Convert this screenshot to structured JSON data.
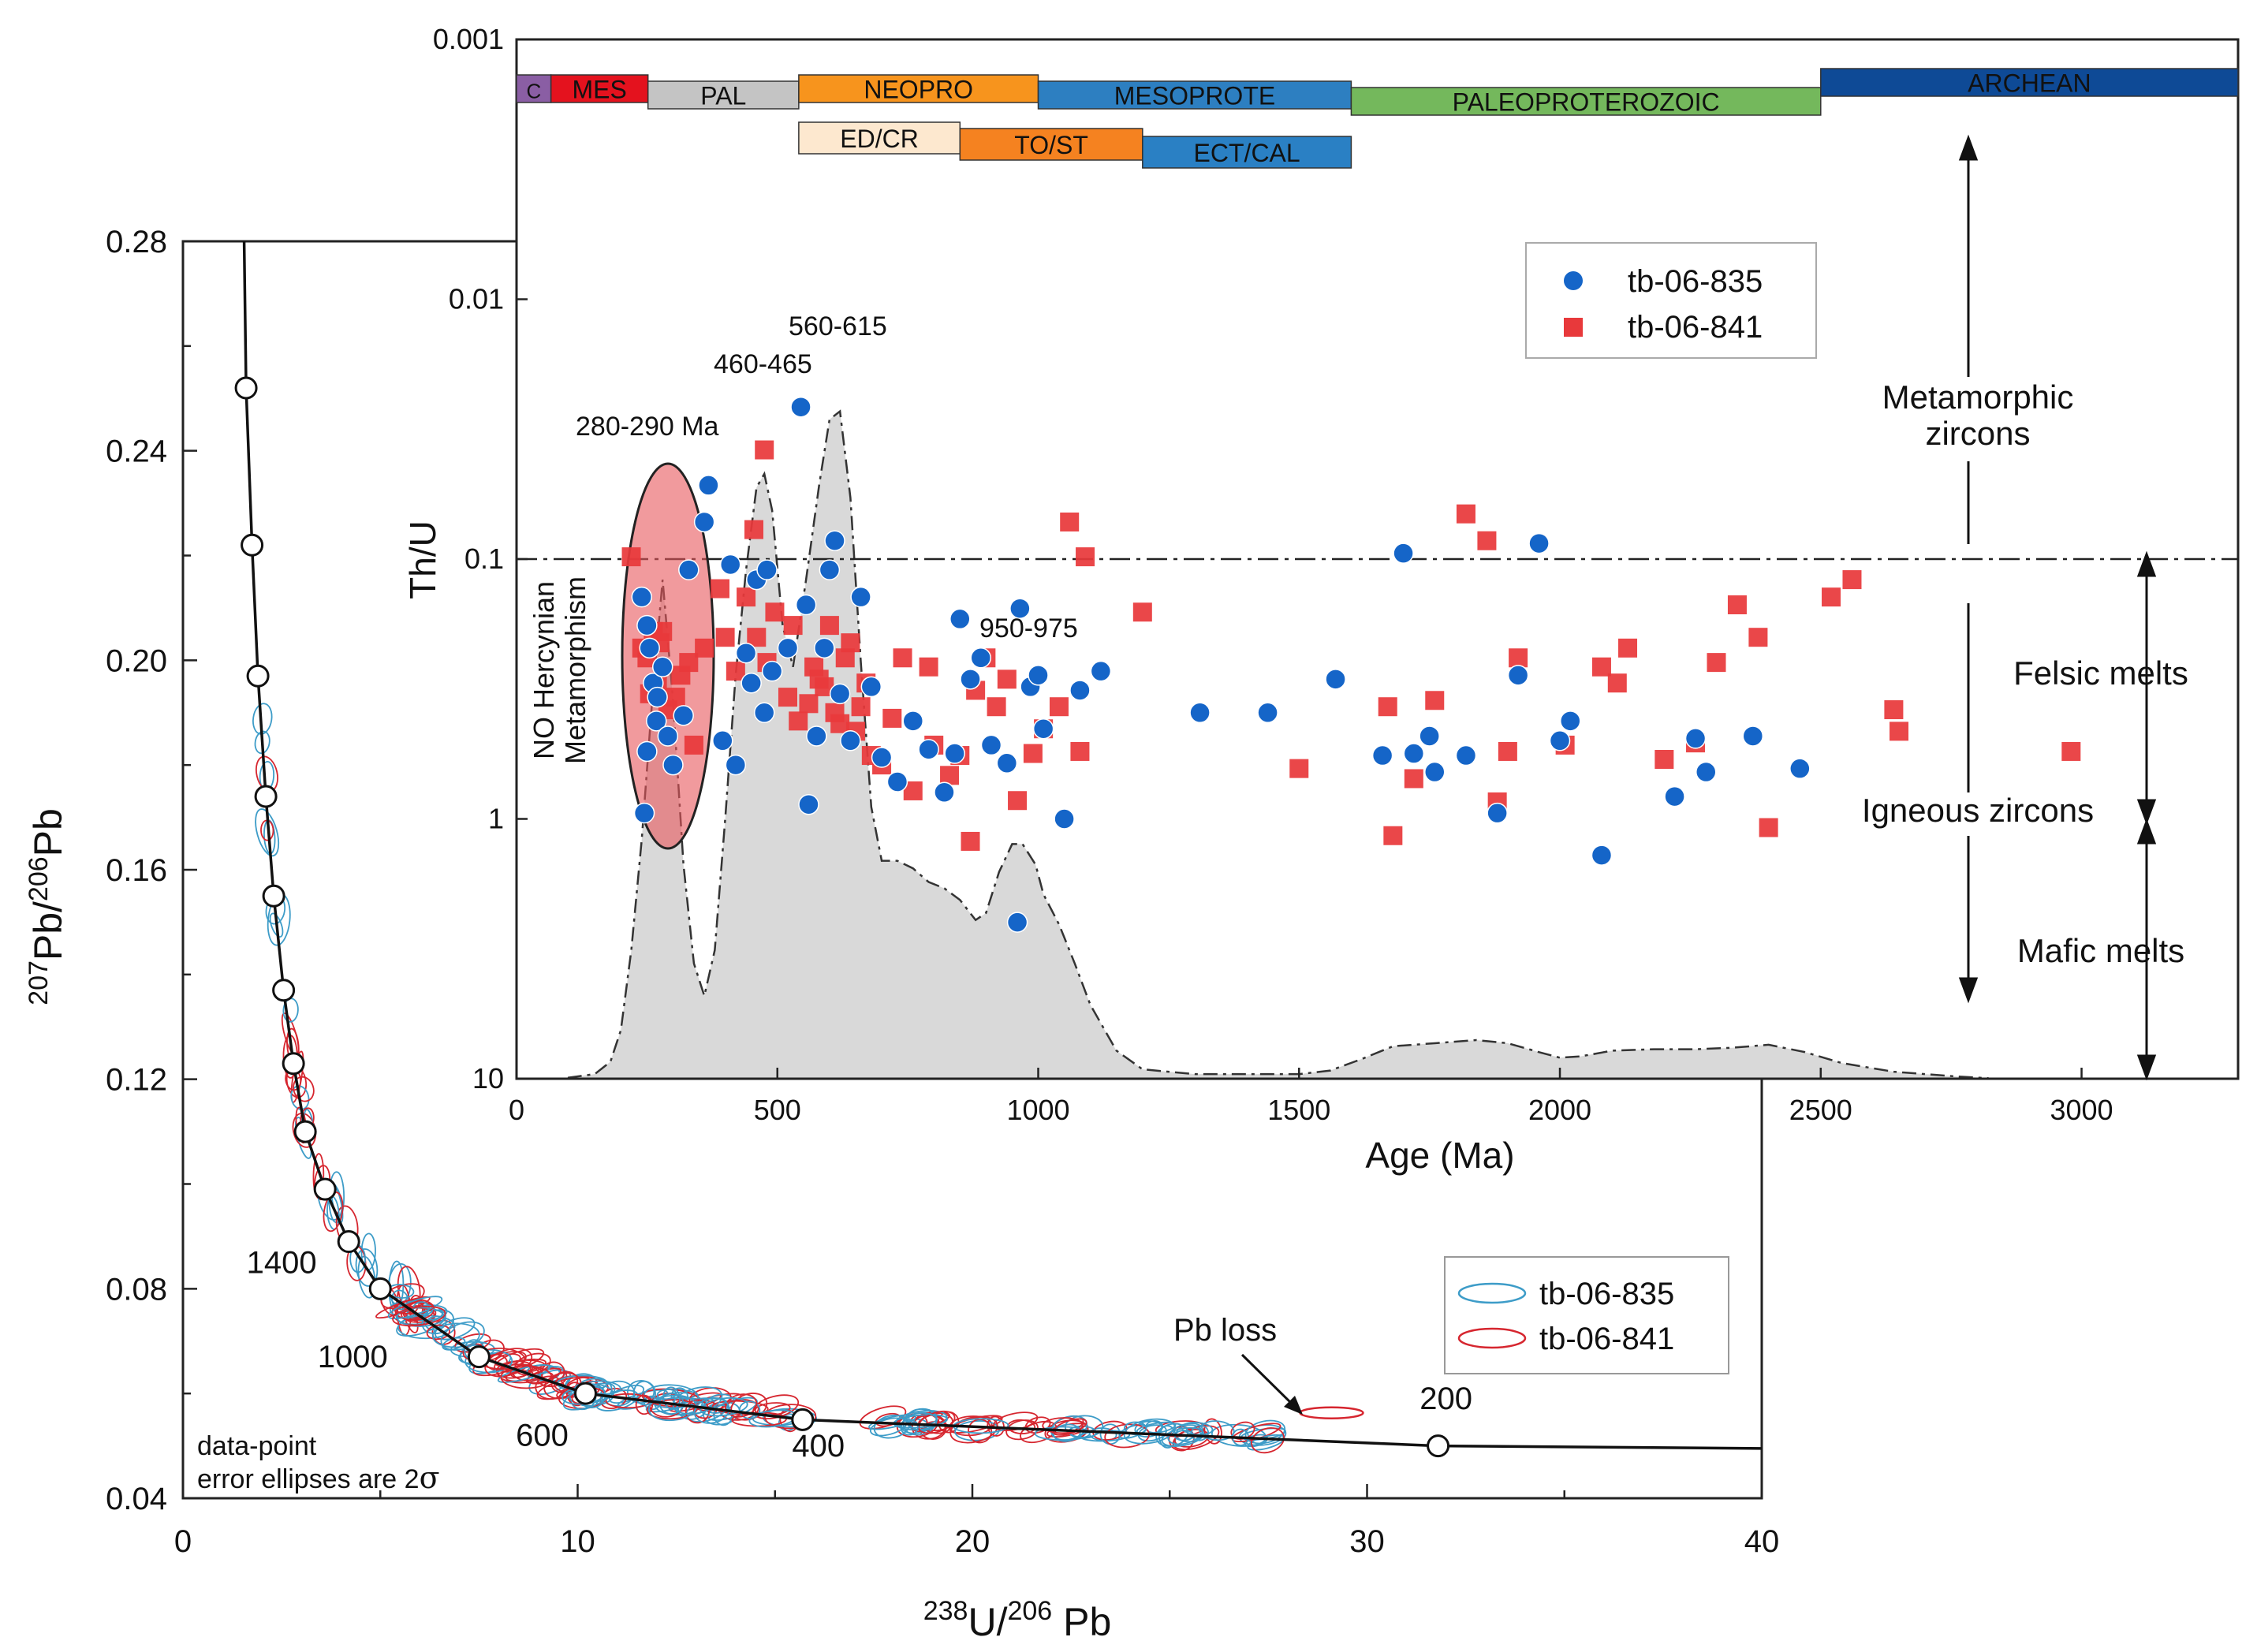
{
  "chart_data": [
    {
      "id": "concordia",
      "type": "scatter",
      "subtype": "concordia-diagram",
      "xlabel": "238U/206Pb",
      "xlabel_parts": {
        "x_mass1": "238",
        "x_el1": "U/",
        "x_mass2": "206",
        "x_el2": " Pb"
      },
      "ylabel": "207Pb/206Pb",
      "ylabel_parts": {
        "y_mass1": "207",
        "y_el1": "Pb/",
        "y_mass2": "206",
        "y_el2": "Pb"
      },
      "xlim": [
        0,
        40
      ],
      "ylim": [
        0.04,
        0.28
      ],
      "x_ticks": [
        0,
        10,
        20,
        30,
        40
      ],
      "y_ticks": [
        0.04,
        0.08,
        0.12,
        0.16,
        0.2,
        0.24,
        0.28
      ],
      "y_tick_labels": [
        "0.04",
        "0.08",
        "0.12",
        "0.16",
        "0.20",
        "0.24",
        "0.28"
      ],
      "concordia_nodes": [
        {
          "x": 1.6,
          "y": 0.252
        },
        {
          "x": 1.75,
          "y": 0.222
        },
        {
          "x": 1.9,
          "y": 0.197
        },
        {
          "x": 2.1,
          "y": 0.174
        },
        {
          "x": 2.3,
          "y": 0.155
        },
        {
          "x": 2.55,
          "y": 0.137
        },
        {
          "x": 2.8,
          "y": 0.123
        },
        {
          "x": 3.1,
          "y": 0.11
        },
        {
          "x": 3.6,
          "y": 0.099
        },
        {
          "x": 4.2,
          "y": 0.089
        },
        {
          "x": 5.0,
          "y": 0.08
        },
        {
          "x": 7.5,
          "y": 0.067
        },
        {
          "x": 10.2,
          "y": 0.06
        },
        {
          "x": 15.7,
          "y": 0.055
        },
        {
          "x": 31.8,
          "y": 0.05
        }
      ],
      "concordia_age_labels": [
        {
          "text": "1400",
          "x": 2.5,
          "y": 0.083
        },
        {
          "text": "1000",
          "x": 4.3,
          "y": 0.065
        },
        {
          "text": "600",
          "x": 9.1,
          "y": 0.05
        },
        {
          "text": "400",
          "x": 16.1,
          "y": 0.048
        },
        {
          "text": "200",
          "x": 32.0,
          "y": 0.057
        }
      ],
      "series": [
        {
          "name": "tb-06-835",
          "color": "#3d9cc8",
          "style": "open ellipse"
        },
        {
          "name": "tb-06-841",
          "color": "#d6262f",
          "style": "open ellipse"
        }
      ],
      "annotations": {
        "pb_loss": "Pb loss",
        "error_note_line1": "data-point",
        "error_note_line2": "error ellipses are 2",
        "sigma": "σ"
      },
      "legend_position": "bottom-right"
    },
    {
      "id": "thu-age",
      "type": "scatter",
      "xlabel": "Age (Ma)",
      "ylabel": "Th/U",
      "xlim": [
        0,
        3300
      ],
      "ylim": [
        0.001,
        10
      ],
      "yscale": "log-inverted",
      "x_ticks": [
        0,
        500,
        1000,
        1500,
        2000,
        2500,
        3000
      ],
      "y_ticks": [
        0.001,
        0.01,
        0.1,
        1,
        10
      ],
      "y_tick_labels": [
        "0.001",
        "0.01",
        "0.1",
        "1",
        "10"
      ],
      "threshold_thu": 0.1,
      "series": [
        {
          "name": "tb-06-835",
          "marker": "circle",
          "color": "#1565c8",
          "points": [
            [
              240,
              0.14
            ],
            [
              250,
              0.18
            ],
            [
              255,
              0.22
            ],
            [
              262,
              0.3
            ],
            [
              268,
              0.42
            ],
            [
              250,
              0.55
            ],
            [
              245,
              0.95
            ],
            [
              270,
              0.34
            ],
            [
              280,
              0.26
            ],
            [
              290,
              0.48
            ],
            [
              300,
              0.62
            ],
            [
              320,
              0.4
            ],
            [
              330,
              0.11
            ],
            [
              360,
              0.072
            ],
            [
              368,
              0.052
            ],
            [
              395,
              0.5
            ],
            [
              410,
              0.105
            ],
            [
              420,
              0.62
            ],
            [
              440,
              0.23
            ],
            [
              450,
              0.3
            ],
            [
              460,
              0.12
            ],
            [
              475,
              0.39
            ],
            [
              480,
              0.11
            ],
            [
              490,
              0.27
            ],
            [
              520,
              0.22
            ],
            [
              545,
              0.026
            ],
            [
              555,
              0.15
            ],
            [
              560,
              0.88
            ],
            [
              575,
              0.48
            ],
            [
              590,
              0.22
            ],
            [
              600,
              0.11
            ],
            [
              610,
              0.085
            ],
            [
              620,
              0.33
            ],
            [
              640,
              0.5
            ],
            [
              660,
              0.14
            ],
            [
              680,
              0.31
            ],
            [
              700,
              0.58
            ],
            [
              730,
              0.72
            ],
            [
              760,
              0.42
            ],
            [
              790,
              0.54
            ],
            [
              820,
              0.79
            ],
            [
              840,
              0.56
            ],
            [
              850,
              0.17
            ],
            [
              870,
              0.29
            ],
            [
              890,
              0.24
            ],
            [
              910,
              0.52
            ],
            [
              940,
              0.61
            ],
            [
              960,
              2.5
            ],
            [
              965,
              0.155
            ],
            [
              985,
              0.31
            ],
            [
              1000,
              0.28
            ],
            [
              1010,
              0.45
            ],
            [
              1050,
              1.0
            ],
            [
              1080,
              0.32
            ],
            [
              1120,
              0.27
            ],
            [
              1310,
              0.39
            ],
            [
              1440,
              0.39
            ],
            [
              1570,
              0.29
            ],
            [
              1660,
              0.57
            ],
            [
              1700,
              0.095
            ],
            [
              1720,
              0.56
            ],
            [
              1750,
              0.48
            ],
            [
              1760,
              0.66
            ],
            [
              1820,
              0.57
            ],
            [
              1880,
              0.95
            ],
            [
              1920,
              0.28
            ],
            [
              1960,
              0.087
            ],
            [
              2000,
              0.5
            ],
            [
              2020,
              0.42
            ],
            [
              2080,
              1.38
            ],
            [
              2220,
              0.82
            ],
            [
              2260,
              0.49
            ],
            [
              2280,
              0.66
            ],
            [
              2370,
              0.48
            ],
            [
              2460,
              0.64
            ]
          ]
        },
        {
          "name": "tb-06-841",
          "marker": "square",
          "color": "#e8393b",
          "points": [
            [
              220,
              0.098
            ],
            [
              240,
              0.22
            ],
            [
              250,
              0.24
            ],
            [
              255,
              0.33
            ],
            [
              262,
              0.19
            ],
            [
              270,
              0.3
            ],
            [
              275,
              0.21
            ],
            [
              280,
              0.19
            ],
            [
              290,
              0.38
            ],
            [
              305,
              0.34
            ],
            [
              315,
              0.28
            ],
            [
              330,
              0.25
            ],
            [
              340,
              0.52
            ],
            [
              360,
              0.22
            ],
            [
              390,
              0.13
            ],
            [
              400,
              0.2
            ],
            [
              420,
              0.27
            ],
            [
              440,
              0.14
            ],
            [
              455,
              0.077
            ],
            [
              460,
              0.2
            ],
            [
              475,
              0.038
            ],
            [
              480,
              0.25
            ],
            [
              495,
              0.16
            ],
            [
              520,
              0.34
            ],
            [
              530,
              0.18
            ],
            [
              540,
              0.42
            ],
            [
              560,
              0.36
            ],
            [
              570,
              0.26
            ],
            [
              580,
              0.29
            ],
            [
              590,
              0.31
            ],
            [
              600,
              0.18
            ],
            [
              610,
              0.39
            ],
            [
              620,
              0.43
            ],
            [
              630,
              0.24
            ],
            [
              640,
              0.21
            ],
            [
              650,
              0.46
            ],
            [
              660,
              0.37
            ],
            [
              670,
              0.3
            ],
            [
              680,
              0.57
            ],
            [
              700,
              0.62
            ],
            [
              720,
              0.41
            ],
            [
              740,
              0.24
            ],
            [
              760,
              0.78
            ],
            [
              790,
              0.26
            ],
            [
              800,
              0.52
            ],
            [
              830,
              0.68
            ],
            [
              850,
              0.57
            ],
            [
              870,
              1.22
            ],
            [
              880,
              0.32
            ],
            [
              900,
              0.24
            ],
            [
              920,
              0.37
            ],
            [
              940,
              0.29
            ],
            [
              960,
              0.85
            ],
            [
              990,
              0.56
            ],
            [
              1010,
              0.45
            ],
            [
              1040,
              0.37
            ],
            [
              1060,
              0.072
            ],
            [
              1080,
              0.55
            ],
            [
              1090,
              0.098
            ],
            [
              1200,
              0.16
            ],
            [
              1500,
              0.64
            ],
            [
              1670,
              0.37
            ],
            [
              1680,
              1.16
            ],
            [
              1720,
              0.7
            ],
            [
              1760,
              0.35
            ],
            [
              1820,
              0.067
            ],
            [
              1860,
              0.085
            ],
            [
              1880,
              0.86
            ],
            [
              1900,
              0.55
            ],
            [
              1920,
              0.24
            ],
            [
              2010,
              0.52
            ],
            [
              2080,
              0.26
            ],
            [
              2110,
              0.3
            ],
            [
              2130,
              0.22
            ],
            [
              2200,
              0.59
            ],
            [
              2260,
              0.51
            ],
            [
              2300,
              0.25
            ],
            [
              2340,
              0.15
            ],
            [
              2380,
              0.2
            ],
            [
              2400,
              1.08
            ],
            [
              2520,
              0.14
            ],
            [
              2560,
              0.12
            ],
            [
              2640,
              0.38
            ],
            [
              2650,
              0.46
            ],
            [
              2980,
              0.55
            ]
          ]
        }
      ],
      "kde_curve": [
        [
          100,
          9.9
        ],
        [
          150,
          9.6
        ],
        [
          180,
          8.6
        ],
        [
          200,
          6.5
        ],
        [
          220,
          3.2
        ],
        [
          240,
          1.2
        ],
        [
          260,
          0.35
        ],
        [
          280,
          0.12
        ],
        [
          300,
          0.35
        ],
        [
          320,
          1.5
        ],
        [
          340,
          3.6
        ],
        [
          360,
          4.8
        ],
        [
          380,
          3.2
        ],
        [
          400,
          1.0
        ],
        [
          420,
          0.28
        ],
        [
          440,
          0.11
        ],
        [
          460,
          0.053
        ],
        [
          475,
          0.047
        ],
        [
          490,
          0.065
        ],
        [
          510,
          0.18
        ],
        [
          530,
          0.26
        ],
        [
          555,
          0.12
        ],
        [
          580,
          0.052
        ],
        [
          600,
          0.029
        ],
        [
          620,
          0.027
        ],
        [
          640,
          0.058
        ],
        [
          660,
          0.25
        ],
        [
          680,
          0.9
        ],
        [
          700,
          1.45
        ],
        [
          730,
          1.45
        ],
        [
          760,
          1.55
        ],
        [
          790,
          1.75
        ],
        [
          820,
          1.85
        ],
        [
          850,
          2.05
        ],
        [
          880,
          2.45
        ],
        [
          900,
          2.3
        ],
        [
          925,
          1.6
        ],
        [
          950,
          1.25
        ],
        [
          970,
          1.25
        ],
        [
          995,
          1.5
        ],
        [
          1010,
          1.95
        ],
        [
          1040,
          2.55
        ],
        [
          1070,
          3.6
        ],
        [
          1100,
          5.2
        ],
        [
          1150,
          7.8
        ],
        [
          1200,
          9.2
        ],
        [
          1300,
          9.6
        ],
        [
          1500,
          9.6
        ],
        [
          1560,
          9.3
        ],
        [
          1620,
          8.4
        ],
        [
          1680,
          7.5
        ],
        [
          1760,
          7.3
        ],
        [
          1840,
          7.1
        ],
        [
          1900,
          7.3
        ],
        [
          1960,
          7.9
        ],
        [
          2000,
          8.3
        ],
        [
          2040,
          8.2
        ],
        [
          2100,
          7.8
        ],
        [
          2180,
          7.7
        ],
        [
          2260,
          7.7
        ],
        [
          2330,
          7.6
        ],
        [
          2400,
          7.4
        ],
        [
          2470,
          7.9
        ],
        [
          2540,
          8.7
        ],
        [
          2640,
          9.4
        ],
        [
          2760,
          9.8
        ],
        [
          2820,
          9.95
        ]
      ],
      "period_bars": [
        {
          "label": "C",
          "from": 0,
          "to": 66,
          "color": "#8a5ea4",
          "row": 1
        },
        {
          "label": "MES",
          "from": 66,
          "to": 252,
          "color": "#e4121e",
          "row": 1
        },
        {
          "label": "PAL",
          "from": 252,
          "to": 541,
          "color": "#c4c4c4",
          "row": 1
        },
        {
          "label": "NEOPRO",
          "from": 541,
          "to": 1000,
          "color": "#f7941d",
          "row": 1
        },
        {
          "label": "MESOPROTE",
          "from": 1000,
          "to": 1600,
          "color": "#2d7fc1",
          "row": 1
        },
        {
          "label": "PALEOPROTEROZOIC",
          "from": 1600,
          "to": 2500,
          "color": "#74b85c",
          "row": 1
        },
        {
          "label": "ARCHEAN",
          "from": 2500,
          "to": 3300,
          "color": "#0e4a96",
          "row": 1
        },
        {
          "label": "ED/CR",
          "from": 541,
          "to": 850,
          "color": "#fde8cf",
          "row": 2
        },
        {
          "label": "TO/ST",
          "from": 850,
          "to": 1200,
          "color": "#f58220",
          "row": 2
        },
        {
          "label": "ECT/CAL",
          "from": 1200,
          "to": 1600,
          "color": "#2a80c4",
          "row": 2
        }
      ],
      "peak_labels": {
        "peak_280": "280-290 Ma",
        "peak_460": "460-465",
        "peak_560": "560-615",
        "peak_950": "950-975"
      },
      "annotations": {
        "no_hercynian_1": "NO Hercynian",
        "no_hercynian_2": "Metamorphism",
        "metamorphic_1": "Metamorphic",
        "metamorphic_2": "zircons",
        "felsic": "Felsic melts",
        "igneous": "Igneous zircons",
        "mafic": "Mafic melts"
      },
      "legend_position": "top-center"
    }
  ]
}
